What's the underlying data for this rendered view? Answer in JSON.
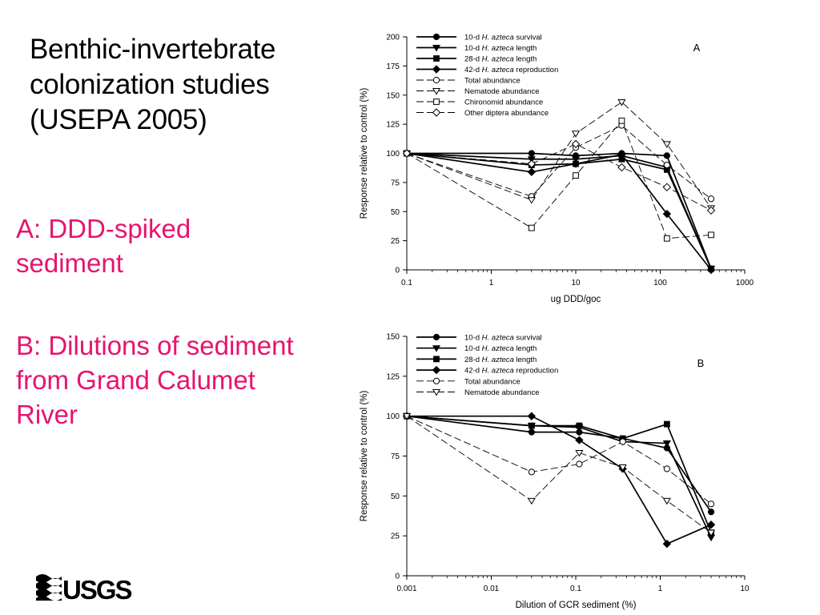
{
  "slide": {
    "title_lines": [
      "Benthic-invertebrate",
      "colonization studies",
      "(USEPA 2005)"
    ],
    "note_a_lines": [
      "A: DDD-spiked",
      "sediment"
    ],
    "note_b_lines": [
      "B: Dilutions of sediment",
      "from Grand Calumet",
      "River"
    ],
    "logo_text": "USGS",
    "accent_color": "#e6146e"
  },
  "chart_data": [
    {
      "type": "line",
      "panel_label": "A",
      "xlabel": "ug DDD/goc",
      "ylabel": "Response relative to control (%)",
      "xscale": "log",
      "xlim": [
        0.1,
        1000
      ],
      "ylim": [
        0,
        200
      ],
      "xticks": [
        0.1,
        1,
        10,
        100,
        1000
      ],
      "xtick_labels": [
        "0.1",
        "1",
        "10",
        "100",
        "1000"
      ],
      "yticks": [
        0,
        25,
        50,
        75,
        100,
        125,
        150,
        175,
        200
      ],
      "legend_position": "top-center",
      "series": [
        {
          "name_prefix": "10-d ",
          "name_species": "H. azteca",
          "name_suffix": " survival",
          "marker": "circle-filled",
          "line": "solid",
          "x": [
            0.1,
            3,
            10,
            35,
            120,
            400
          ],
          "y": [
            100,
            100,
            98,
            100,
            98,
            1
          ]
        },
        {
          "name_prefix": "10-d ",
          "name_species": "H. azteca",
          "name_suffix": " length",
          "marker": "triangle-down-filled",
          "line": "solid",
          "x": [
            0.1,
            3,
            10,
            35,
            120,
            400
          ],
          "y": [
            100,
            95,
            95,
            98,
            88,
            1
          ]
        },
        {
          "name_prefix": "28-d ",
          "name_species": "H. azteca",
          "name_suffix": " length",
          "marker": "square-filled",
          "line": "solid",
          "x": [
            0.1,
            3,
            10,
            35,
            120,
            400
          ],
          "y": [
            100,
            90,
            91,
            95,
            86,
            1
          ]
        },
        {
          "name_prefix": "42-d ",
          "name_species": "H. azteca",
          "name_suffix": " reproduction",
          "marker": "diamond-filled",
          "line": "solid",
          "x": [
            0.1,
            3,
            10,
            35,
            120,
            400
          ],
          "y": [
            100,
            84,
            91,
            99,
            48,
            0
          ]
        },
        {
          "name_prefix": "Total abundance",
          "name_species": "",
          "name_suffix": "",
          "marker": "circle-open",
          "line": "dashed",
          "x": [
            0.1,
            3,
            10,
            35,
            120,
            400
          ],
          "y": [
            100,
            63,
            105,
            124,
            90,
            61
          ]
        },
        {
          "name_prefix": "Nematode abundance",
          "name_species": "",
          "name_suffix": "",
          "marker": "triangle-down-open",
          "line": "dashed",
          "x": [
            0.1,
            3,
            10,
            35,
            120,
            400
          ],
          "y": [
            100,
            60,
            117,
            144,
            108,
            53
          ]
        },
        {
          "name_prefix": "Chironomid abundance",
          "name_species": "",
          "name_suffix": "",
          "marker": "square-open",
          "line": "dashed",
          "x": [
            0.1,
            3,
            10,
            35,
            120,
            400
          ],
          "y": [
            100,
            36,
            81,
            128,
            27,
            30
          ]
        },
        {
          "name_prefix": "Other diptera abundance",
          "name_species": "",
          "name_suffix": "",
          "marker": "diamond-open",
          "line": "dashed",
          "x": [
            0.1,
            3,
            10,
            35,
            120,
            400
          ],
          "y": [
            100,
            91,
            108,
            88,
            71,
            51
          ]
        }
      ]
    },
    {
      "type": "line",
      "panel_label": "B",
      "xlabel": "Dilution of GCR sediment (%)",
      "ylabel": "Response relative to control (%)",
      "xscale": "log",
      "xlim": [
        0.001,
        10
      ],
      "ylim": [
        0,
        150
      ],
      "xticks": [
        0.001,
        0.01,
        0.1,
        1,
        10
      ],
      "xtick_labels": [
        "0.001",
        "0.01",
        "0.1",
        "1",
        "10"
      ],
      "yticks": [
        0,
        25,
        50,
        75,
        100,
        125,
        150
      ],
      "legend_position": "top-center",
      "series": [
        {
          "name_prefix": "10-d ",
          "name_species": "H. azteca",
          "name_suffix": " survival",
          "marker": "circle-filled",
          "line": "solid",
          "x": [
            0.001,
            0.03,
            0.11,
            0.36,
            1.2,
            4
          ],
          "y": [
            100,
            90,
            90,
            86,
            80,
            40
          ]
        },
        {
          "name_prefix": "10-d ",
          "name_species": "H. azteca",
          "name_suffix": " length",
          "marker": "triangle-down-filled",
          "line": "solid",
          "x": [
            0.001,
            0.03,
            0.11,
            0.36,
            1.2,
            4
          ],
          "y": [
            100,
            94,
            93,
            84,
            83,
            24
          ]
        },
        {
          "name_prefix": "28-d ",
          "name_species": "H. azteca",
          "name_suffix": " length",
          "marker": "square-filled",
          "line": "solid",
          "x": [
            0.001,
            0.03,
            0.11,
            0.36,
            1.2,
            4
          ],
          "y": [
            100,
            94,
            94,
            86,
            95,
            27
          ]
        },
        {
          "name_prefix": "42-d ",
          "name_species": "H. azteca",
          "name_suffix": " reproduction",
          "marker": "diamond-filled",
          "line": "solid",
          "x": [
            0.001,
            0.03,
            0.11,
            0.36,
            1.2,
            4
          ],
          "y": [
            100,
            100,
            85,
            67,
            20,
            32
          ]
        },
        {
          "name_prefix": "Total abundance",
          "name_species": "",
          "name_suffix": "",
          "marker": "circle-open",
          "line": "dashed",
          "x": [
            0.001,
            0.03,
            0.11,
            0.36,
            1.2,
            4
          ],
          "y": [
            100,
            65,
            70,
            84,
            67,
            45
          ]
        },
        {
          "name_prefix": "Nematode abundance",
          "name_species": "",
          "name_suffix": "",
          "marker": "triangle-down-open",
          "line": "dashed",
          "x": [
            0.001,
            0.03,
            0.11,
            0.36,
            1.2,
            4
          ],
          "y": [
            100,
            47,
            77,
            68,
            47,
            27
          ]
        }
      ]
    }
  ]
}
